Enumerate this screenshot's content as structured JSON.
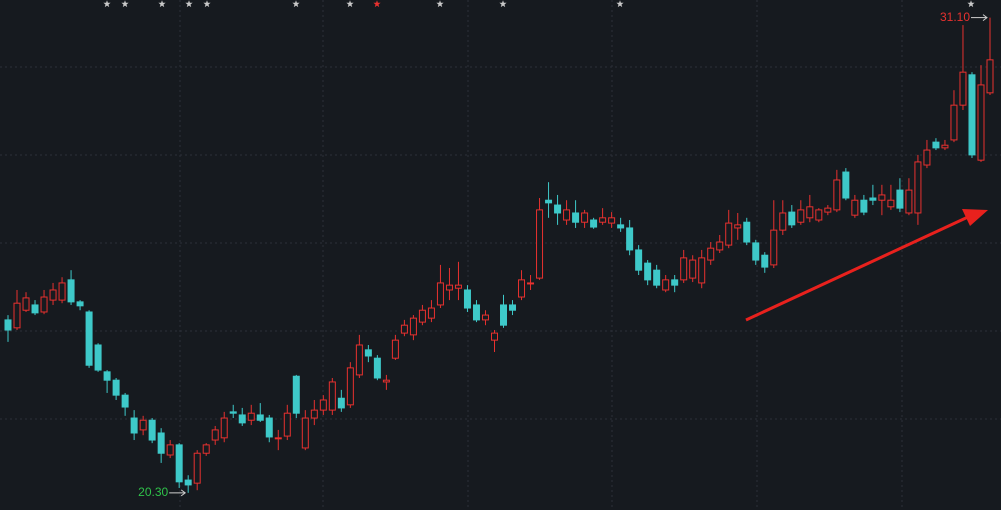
{
  "chart_data": {
    "type": "candlestick",
    "ylim": [
      19.91,
      31.5
    ],
    "rise_color": "#e8312f",
    "fall_color": "#3ec9c9",
    "ohlc": [
      [
        24.23,
        24.34,
        23.73,
        24.0
      ],
      [
        24.05,
        24.91,
        24.0,
        24.61
      ],
      [
        24.45,
        24.86,
        24.41,
        24.73
      ],
      [
        24.57,
        24.68,
        24.34,
        24.39
      ],
      [
        24.41,
        24.91,
        24.36,
        24.75
      ],
      [
        24.68,
        25.07,
        24.57,
        24.91
      ],
      [
        24.68,
        25.2,
        24.61,
        25.07
      ],
      [
        25.14,
        25.36,
        24.57,
        24.64
      ],
      [
        24.64,
        24.68,
        24.45,
        24.55
      ],
      [
        24.41,
        24.45,
        23.14,
        23.2
      ],
      [
        23.66,
        23.7,
        23.05,
        23.09
      ],
      [
        23.05,
        23.09,
        22.57,
        22.86
      ],
      [
        22.86,
        22.91,
        22.41,
        22.52
      ],
      [
        22.52,
        22.57,
        22.05,
        22.25
      ],
      [
        22.0,
        22.18,
        21.5,
        21.66
      ],
      [
        21.73,
        22.05,
        21.61,
        21.95
      ],
      [
        21.95,
        22.0,
        21.43,
        21.5
      ],
      [
        21.66,
        21.77,
        20.98,
        21.2
      ],
      [
        21.16,
        21.5,
        21.09,
        21.39
      ],
      [
        21.39,
        21.43,
        20.41,
        20.55
      ],
      [
        20.59,
        20.7,
        20.3,
        20.48
      ],
      [
        20.52,
        21.27,
        20.36,
        21.2
      ],
      [
        21.2,
        21.43,
        21.14,
        21.39
      ],
      [
        21.5,
        21.82,
        21.39,
        21.73
      ],
      [
        21.55,
        22.14,
        21.45,
        22.0
      ],
      [
        22.14,
        22.3,
        22.0,
        22.11
      ],
      [
        22.07,
        22.23,
        21.82,
        21.89
      ],
      [
        21.95,
        22.3,
        21.84,
        22.11
      ],
      [
        22.07,
        22.34,
        21.91,
        21.95
      ],
      [
        22.0,
        22.07,
        21.45,
        21.57
      ],
      [
        21.55,
        21.73,
        21.27,
        21.55
      ],
      [
        21.59,
        22.3,
        21.5,
        22.11
      ],
      [
        22.95,
        22.98,
        22.0,
        22.11
      ],
      [
        21.32,
        22.18,
        21.27,
        22.0
      ],
      [
        22.0,
        22.41,
        21.84,
        22.18
      ],
      [
        22.18,
        22.52,
        22.07,
        22.41
      ],
      [
        22.18,
        22.91,
        22.07,
        22.82
      ],
      [
        22.45,
        22.64,
        22.14,
        22.23
      ],
      [
        22.3,
        23.27,
        22.23,
        23.14
      ],
      [
        22.98,
        23.89,
        22.91,
        23.66
      ],
      [
        23.55,
        23.66,
        23.27,
        23.41
      ],
      [
        23.36,
        23.43,
        22.86,
        22.91
      ],
      [
        22.82,
        22.98,
        22.64,
        22.86
      ],
      [
        23.36,
        23.89,
        23.32,
        23.77
      ],
      [
        23.93,
        24.23,
        23.86,
        24.11
      ],
      [
        23.89,
        24.34,
        23.77,
        24.27
      ],
      [
        24.18,
        24.57,
        24.11,
        24.45
      ],
      [
        24.27,
        24.68,
        24.18,
        24.5
      ],
      [
        24.57,
        25.48,
        24.5,
        25.07
      ],
      [
        24.91,
        25.41,
        24.68,
        25.02
      ],
      [
        24.95,
        25.55,
        24.68,
        25.02
      ],
      [
        24.91,
        25.02,
        24.41,
        24.5
      ],
      [
        24.57,
        24.68,
        24.18,
        24.23
      ],
      [
        24.23,
        24.45,
        24.11,
        24.34
      ],
      [
        23.77,
        24.0,
        23.5,
        23.93
      ],
      [
        24.57,
        24.8,
        24.05,
        24.11
      ],
      [
        24.57,
        24.68,
        24.34,
        24.45
      ],
      [
        24.75,
        25.36,
        24.68,
        25.14
      ],
      [
        25.07,
        25.25,
        24.91,
        25.07
      ],
      [
        25.18,
        27.0,
        25.14,
        26.73
      ],
      [
        26.95,
        27.36,
        26.55,
        26.89
      ],
      [
        26.84,
        27.07,
        26.39,
        26.66
      ],
      [
        26.5,
        26.95,
        26.39,
        26.73
      ],
      [
        26.66,
        26.95,
        26.32,
        26.45
      ],
      [
        26.45,
        26.73,
        26.32,
        26.66
      ],
      [
        26.5,
        26.55,
        26.3,
        26.34
      ],
      [
        26.45,
        26.77,
        26.39,
        26.55
      ],
      [
        26.43,
        26.68,
        26.32,
        26.55
      ],
      [
        26.39,
        26.55,
        26.23,
        26.32
      ],
      [
        26.32,
        26.5,
        25.7,
        25.82
      ],
      [
        25.82,
        25.93,
        25.25,
        25.36
      ],
      [
        25.52,
        25.59,
        25.02,
        25.14
      ],
      [
        25.36,
        25.48,
        24.95,
        25.02
      ],
      [
        24.91,
        25.25,
        24.86,
        25.14
      ],
      [
        25.14,
        25.25,
        24.86,
        25.02
      ],
      [
        25.14,
        25.82,
        25.07,
        25.64
      ],
      [
        25.18,
        25.7,
        25.09,
        25.59
      ],
      [
        25.07,
        25.82,
        24.95,
        25.64
      ],
      [
        25.59,
        26.0,
        25.48,
        25.86
      ],
      [
        25.82,
        26.16,
        25.75,
        26.0
      ],
      [
        25.93,
        26.73,
        25.86,
        26.43
      ],
      [
        26.32,
        26.66,
        26.05,
        26.39
      ],
      [
        26.45,
        26.55,
        25.93,
        26.0
      ],
      [
        25.98,
        26.05,
        25.48,
        25.59
      ],
      [
        25.7,
        25.77,
        25.3,
        25.43
      ],
      [
        25.48,
        26.95,
        25.41,
        26.27
      ],
      [
        26.27,
        26.95,
        26.16,
        26.66
      ],
      [
        26.68,
        26.84,
        26.32,
        26.39
      ],
      [
        26.45,
        26.95,
        26.39,
        26.73
      ],
      [
        26.55,
        27.07,
        26.45,
        26.8
      ],
      [
        26.5,
        26.77,
        26.45,
        26.73
      ],
      [
        26.68,
        26.84,
        26.61,
        26.77
      ],
      [
        26.73,
        27.64,
        26.68,
        27.41
      ],
      [
        27.59,
        27.68,
        26.95,
        27.0
      ],
      [
        26.61,
        27.07,
        26.55,
        26.95
      ],
      [
        26.95,
        27.07,
        26.61,
        26.68
      ],
      [
        27.0,
        27.3,
        26.84,
        26.95
      ],
      [
        26.95,
        27.3,
        26.61,
        27.07
      ],
      [
        26.8,
        27.3,
        26.73,
        26.95
      ],
      [
        27.18,
        27.45,
        26.68,
        26.77
      ],
      [
        26.66,
        27.45,
        26.61,
        27.18
      ],
      [
        26.66,
        27.98,
        26.39,
        27.82
      ],
      [
        27.75,
        28.32,
        27.68,
        28.09
      ],
      [
        28.27,
        28.36,
        28.09,
        28.14
      ],
      [
        28.14,
        28.32,
        28.09,
        28.2
      ],
      [
        28.32,
        29.45,
        28.27,
        29.11
      ],
      [
        29.11,
        30.93,
        29.0,
        29.86
      ],
      [
        29.8,
        29.86,
        27.91,
        27.98
      ],
      [
        27.86,
        30.02,
        27.82,
        29.57
      ],
      [
        29.39,
        31.1,
        29.34,
        30.14
      ]
    ],
    "annotations": [
      {
        "value": 31.1,
        "label": "31.10",
        "color": "#e8312f"
      },
      {
        "value": 20.3,
        "label": "20.30",
        "color": "#2fc24a"
      }
    ]
  }
}
